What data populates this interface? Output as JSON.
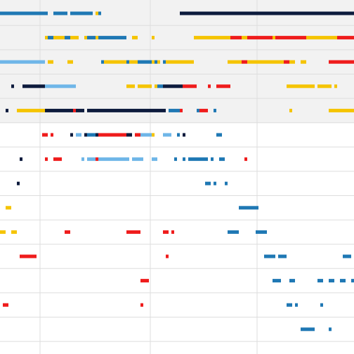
{
  "chart_data": {
    "type": "scatter",
    "title": "",
    "xlabel": "",
    "ylabel": "",
    "grid": true,
    "legend": "none",
    "colors": {
      "navy": "#0d1b3d",
      "blue": "#1f78b4",
      "lightblue": "#6fb6e8",
      "yellow": "#f5c400",
      "red": "#ef1c1c",
      "shade": "#f2f2f2",
      "gridline": "#dddddd"
    },
    "xlim": [
      0,
      126
    ],
    "ylim": [
      0,
      14
    ],
    "shaded_rows": [
      0,
      4
    ],
    "rows": [
      {
        "row": 0,
        "segments": [
          [
            0,
            17,
            "blue"
          ],
          [
            19,
            24,
            "blue"
          ],
          [
            25,
            33,
            "blue"
          ],
          [
            34,
            35,
            "yellow"
          ],
          [
            35,
            36,
            "blue"
          ],
          [
            64,
            126,
            "navy"
          ]
        ]
      },
      {
        "row": 1,
        "segments": [
          [
            16,
            17,
            "yellow"
          ],
          [
            17,
            19,
            "blue"
          ],
          [
            19,
            23,
            "yellow"
          ],
          [
            23,
            25,
            "blue"
          ],
          [
            25,
            28,
            "yellow"
          ],
          [
            30,
            31,
            "yellow"
          ],
          [
            31,
            34,
            "blue"
          ],
          [
            34,
            35,
            "yellow"
          ],
          [
            35,
            37,
            "blue"
          ],
          [
            37,
            45,
            "blue"
          ],
          [
            47,
            49,
            "yellow"
          ],
          [
            54,
            55,
            "yellow"
          ],
          [
            69,
            82,
            "yellow"
          ],
          [
            82,
            86,
            "red"
          ],
          [
            86,
            88,
            "yellow"
          ],
          [
            88,
            97,
            "red"
          ],
          [
            97,
            98,
            "yellow"
          ],
          [
            98,
            109,
            "red"
          ],
          [
            109,
            120,
            "yellow"
          ],
          [
            120,
            126,
            "red"
          ]
        ]
      },
      {
        "row": 2,
        "segments": [
          [
            0,
            16,
            "lightblue"
          ],
          [
            17,
            19,
            "yellow"
          ],
          [
            24,
            26,
            "yellow"
          ],
          [
            36,
            37,
            "blue"
          ],
          [
            37,
            45,
            "yellow"
          ],
          [
            45,
            46,
            "blue"
          ],
          [
            46,
            49,
            "yellow"
          ],
          [
            49,
            54,
            "blue"
          ],
          [
            54,
            55,
            "yellow"
          ],
          [
            55,
            56,
            "blue"
          ],
          [
            56,
            57,
            "yellow"
          ],
          [
            58,
            59,
            "blue"
          ],
          [
            59,
            69,
            "yellow"
          ],
          [
            81,
            86,
            "yellow"
          ],
          [
            86,
            88,
            "red"
          ],
          [
            88,
            101,
            "yellow"
          ],
          [
            101,
            103,
            "red"
          ],
          [
            103,
            105,
            "yellow"
          ],
          [
            107,
            109,
            "yellow"
          ],
          [
            117,
            126,
            "red"
          ]
        ]
      },
      {
        "row": 3,
        "segments": [
          [
            4,
            5,
            "navy"
          ],
          [
            8,
            16,
            "navy"
          ],
          [
            16,
            27,
            "lightblue"
          ],
          [
            45,
            48,
            "yellow"
          ],
          [
            49,
            54,
            "yellow"
          ],
          [
            55,
            56,
            "yellow"
          ],
          [
            56,
            58,
            "blue"
          ],
          [
            58,
            65,
            "navy"
          ],
          [
            65,
            70,
            "red"
          ],
          [
            74,
            75,
            "red"
          ],
          [
            77,
            82,
            "red"
          ],
          [
            102,
            104,
            "yellow"
          ],
          [
            104,
            112,
            "yellow"
          ],
          [
            113,
            118,
            "yellow"
          ],
          [
            119,
            120,
            "yellow"
          ]
        ]
      },
      {
        "row": 4,
        "segments": [
          [
            2,
            3,
            "navy"
          ],
          [
            6,
            16,
            "yellow"
          ],
          [
            16,
            26,
            "navy"
          ],
          [
            26,
            27,
            "red"
          ],
          [
            27,
            30,
            "navy"
          ],
          [
            31,
            59,
            "navy"
          ],
          [
            60,
            64,
            "blue"
          ],
          [
            64,
            65,
            "red"
          ],
          [
            70,
            71,
            "blue"
          ],
          [
            71,
            74,
            "red"
          ],
          [
            76,
            77,
            "blue"
          ],
          [
            103,
            104,
            "yellow"
          ],
          [
            117,
            126,
            "yellow"
          ]
        ]
      },
      {
        "row": 5,
        "segments": [
          [
            15,
            17,
            "red"
          ],
          [
            18,
            19,
            "red"
          ],
          [
            25,
            26,
            "navy"
          ],
          [
            27,
            29,
            "lightblue"
          ],
          [
            30,
            31,
            "navy"
          ],
          [
            31,
            34,
            "blue"
          ],
          [
            34,
            35,
            "navy"
          ],
          [
            35,
            45,
            "red"
          ],
          [
            45,
            47,
            "navy"
          ],
          [
            48,
            50,
            "red"
          ],
          [
            50,
            54,
            "lightblue"
          ],
          [
            54,
            55,
            "yellow"
          ],
          [
            58,
            61,
            "lightblue"
          ],
          [
            63,
            64,
            "blue"
          ],
          [
            65,
            66,
            "navy"
          ],
          [
            77,
            79,
            "blue"
          ]
        ]
      },
      {
        "row": 6,
        "segments": [
          [
            7,
            8,
            "navy"
          ],
          [
            16,
            17,
            "red"
          ],
          [
            19,
            22,
            "red"
          ],
          [
            29,
            30,
            "lightblue"
          ],
          [
            31,
            34,
            "lightblue"
          ],
          [
            34,
            35,
            "red"
          ],
          [
            35,
            46,
            "lightblue"
          ],
          [
            47,
            51,
            "lightblue"
          ],
          [
            54,
            56,
            "lightblue"
          ],
          [
            62,
            63,
            "blue"
          ],
          [
            65,
            66,
            "blue"
          ],
          [
            67,
            74,
            "blue"
          ],
          [
            75,
            76,
            "blue"
          ],
          [
            78,
            80,
            "blue"
          ],
          [
            87,
            88,
            "red"
          ]
        ]
      },
      {
        "row": 7,
        "segments": [
          [
            6,
            7,
            "navy"
          ],
          [
            73,
            75,
            "blue"
          ],
          [
            76,
            77,
            "blue"
          ],
          [
            80,
            81,
            "blue"
          ]
        ]
      },
      {
        "row": 8,
        "segments": [
          [
            2,
            4,
            "yellow"
          ],
          [
            85,
            92,
            "blue"
          ]
        ]
      },
      {
        "row": 9,
        "segments": [
          [
            0,
            2,
            "yellow"
          ],
          [
            4,
            6,
            "yellow"
          ],
          [
            23,
            25,
            "red"
          ],
          [
            45,
            48,
            "red"
          ],
          [
            48,
            50,
            "red"
          ],
          [
            58,
            60,
            "red"
          ],
          [
            61,
            62,
            "red"
          ],
          [
            81,
            85,
            "blue"
          ],
          [
            91,
            95,
            "blue"
          ]
        ]
      },
      {
        "row": 10,
        "segments": [
          [
            7,
            12,
            "red"
          ],
          [
            12,
            13,
            "red"
          ],
          [
            59,
            60,
            "red"
          ],
          [
            94,
            98,
            "blue"
          ],
          [
            99,
            102,
            "blue"
          ],
          [
            122,
            125,
            "blue"
          ]
        ]
      },
      {
        "row": 11,
        "segments": [
          [
            50,
            53,
            "red"
          ],
          [
            97,
            100,
            "blue"
          ],
          [
            103,
            105,
            "blue"
          ],
          [
            113,
            115,
            "blue"
          ],
          [
            117,
            119,
            "blue"
          ],
          [
            121,
            123,
            "blue"
          ],
          [
            125,
            126,
            "blue"
          ]
        ]
      },
      {
        "row": 12,
        "segments": [
          [
            1,
            3,
            "red"
          ],
          [
            50,
            51,
            "red"
          ],
          [
            102,
            104,
            "blue"
          ],
          [
            105,
            106,
            "blue"
          ],
          [
            114,
            115,
            "blue"
          ]
        ]
      },
      {
        "row": 13,
        "segments": [
          [
            107,
            112,
            "blue"
          ],
          [
            117,
            118,
            "blue"
          ]
        ]
      }
    ]
  }
}
